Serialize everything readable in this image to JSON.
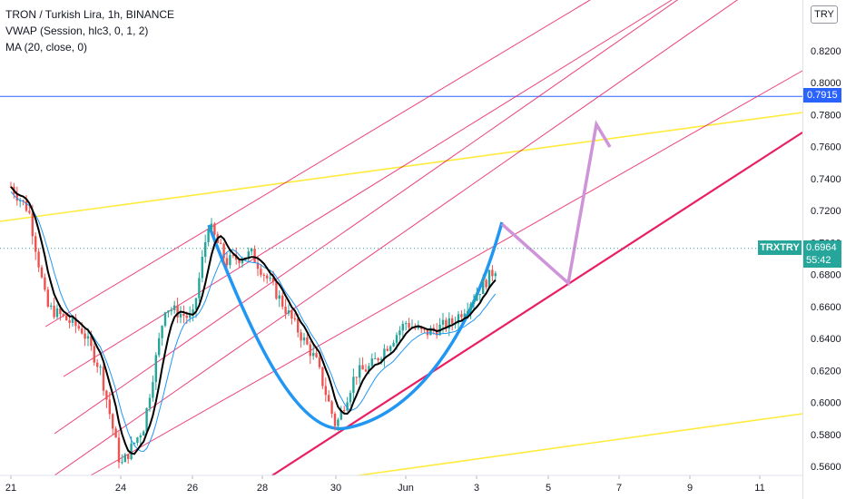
{
  "legend": {
    "title": "TRON / Turkish Lira, 1h, BINANCE",
    "vwap": "VWAP (Session, hlc3, 0, 1, 2)",
    "ma": "MA (20, close, 0)"
  },
  "currency_button": "TRY",
  "horizontal_line_price": "0.7915",
  "symbol_tag": "TRXTRY",
  "last_price": "0.6964",
  "countdown": "55:42",
  "colors": {
    "up": "#26a69a",
    "down": "#ef5350",
    "horizontal_line": "#2962ff",
    "channel": "#e91e63",
    "yellow_lines": "#ffeb3b",
    "cup": "#2196f3",
    "projection": "#ce93d8",
    "ma": "#000000",
    "vwap": "#2196f3"
  },
  "chart_data": {
    "type": "candlestick",
    "y_axis": {
      "ticks": [
        "0.8200",
        "0.8000",
        "0.7800",
        "0.7600",
        "0.7400",
        "0.7200",
        "0.7000",
        "0.6800",
        "0.6600",
        "0.6400",
        "0.6200",
        "0.6000",
        "0.5800",
        "0.5600"
      ],
      "range": [
        0.554,
        0.844
      ]
    },
    "x_axis": {
      "ticks": [
        "21",
        "24",
        "26",
        "28",
        "30",
        "Jun",
        "3",
        "5",
        "7",
        "9",
        "11"
      ]
    },
    "price_path": [
      {
        "x": "21",
        "y": 0.735
      },
      {
        "x": "21.5",
        "y": 0.72
      },
      {
        "x": "22",
        "y": 0.66
      },
      {
        "x": "23",
        "y": 0.645
      },
      {
        "x": "23.5",
        "y": 0.62
      },
      {
        "x": "24",
        "y": 0.56
      },
      {
        "x": "24.7",
        "y": 0.585
      },
      {
        "x": "25.3",
        "y": 0.66
      },
      {
        "x": "26",
        "y": 0.652
      },
      {
        "x": "26.5",
        "y": 0.712
      },
      {
        "x": "27",
        "y": 0.688
      },
      {
        "x": "27.7",
        "y": 0.693
      },
      {
        "x": "28.3",
        "y": 0.672
      },
      {
        "x": "29",
        "y": 0.645
      },
      {
        "x": "29.5",
        "y": 0.626
      },
      {
        "x": "30",
        "y": 0.585
      },
      {
        "x": "30.6",
        "y": 0.618
      },
      {
        "x": "31",
        "y": 0.622
      },
      {
        "x": "Jun",
        "y": 0.65
      },
      {
        "x": "1.5",
        "y": 0.643
      },
      {
        "x": "2.3",
        "y": 0.65
      },
      {
        "x": "3",
        "y": 0.668
      },
      {
        "x": "3.5",
        "y": 0.684
      }
    ]
  }
}
